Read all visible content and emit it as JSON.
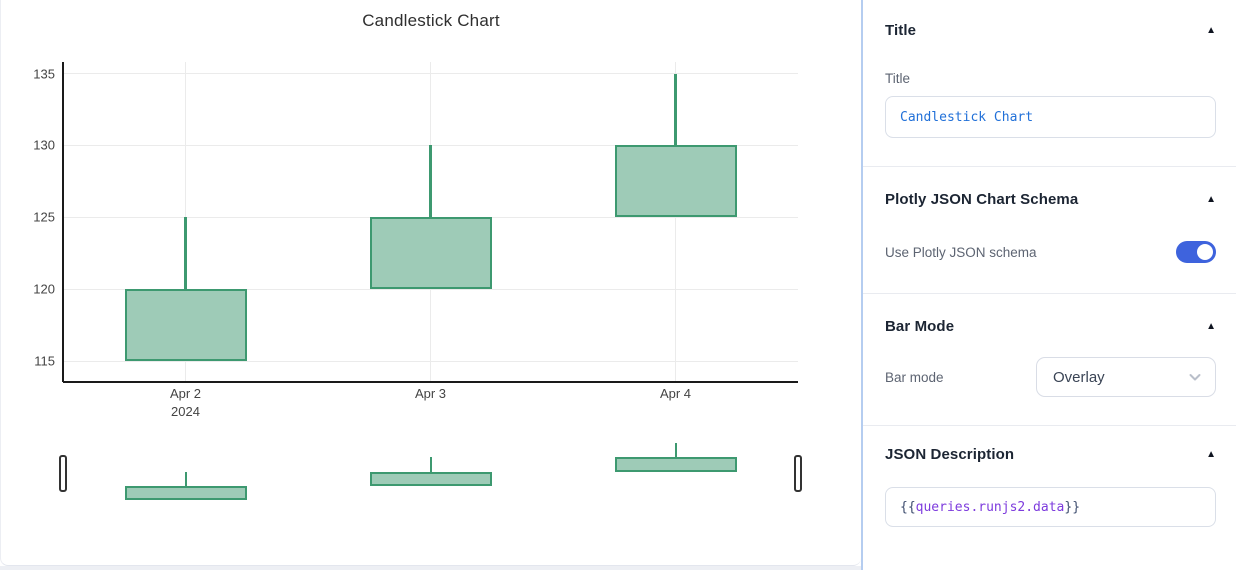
{
  "chart_data": {
    "type": "candlestick",
    "title": "Candlestick Chart",
    "categories": [
      "Apr 2",
      "Apr 3",
      "Apr 4"
    ],
    "year_label": {
      "index": 0,
      "text": "2024"
    },
    "candles": [
      {
        "x": "Apr 2",
        "open": 115,
        "high": 125,
        "low": 115,
        "close": 120
      },
      {
        "x": "Apr 3",
        "open": 120,
        "high": 130,
        "low": 120,
        "close": 125
      },
      {
        "x": "Apr 4",
        "open": 125,
        "high": 135,
        "low": 125,
        "close": 130
      }
    ],
    "yticks": [
      115,
      120,
      125,
      130,
      135
    ],
    "ylim": [
      113.55,
      135.8
    ],
    "grid": true,
    "rangeslider": true,
    "colors": {
      "increasing_line": "#3D9970",
      "increasing_fill": "#9ecbb7",
      "gridline": "#ebebeb",
      "axis": "#1a1a1a",
      "tick_text": "#444444"
    }
  },
  "inspector": {
    "accent_colors": {
      "toggle_on": "#3e63dd",
      "input_text": "#2170d8",
      "token_path": "#7d3bdd",
      "panel_border": "#b5cdf0"
    },
    "sections": {
      "title": {
        "header": "Title",
        "collapse_icon": "▲",
        "field_label": "Title",
        "input_value": "Candlestick Chart"
      },
      "schema": {
        "header": "Plotly JSON Chart Schema",
        "collapse_icon": "▲",
        "toggle_label": "Use Plotly JSON schema",
        "toggle_on": true
      },
      "barmode": {
        "header": "Bar Mode",
        "collapse_icon": "▲",
        "field_label": "Bar mode",
        "select_value": "Overlay"
      },
      "json_description": {
        "header": "JSON Description",
        "collapse_icon": "▲",
        "tokens": {
          "open": "{{",
          "path": "queries.runjs2.data",
          "close": "}}"
        }
      }
    }
  }
}
